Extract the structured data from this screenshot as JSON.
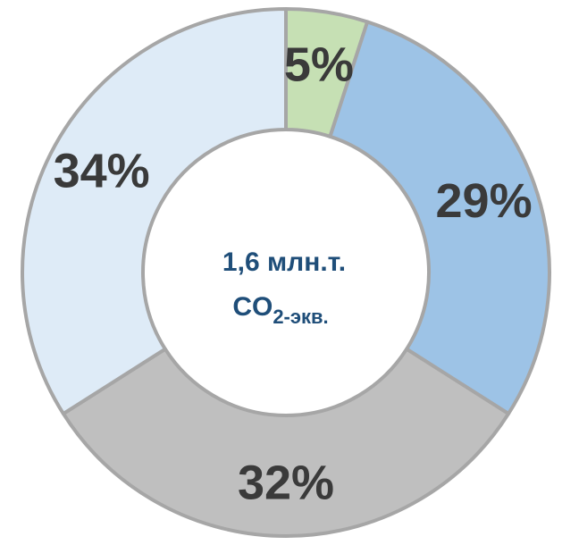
{
  "chart_data": {
    "type": "pie",
    "donut": true,
    "slices": [
      {
        "label": "5%",
        "value": 5,
        "color": "#c6e0b4"
      },
      {
        "label": "29%",
        "value": 29,
        "color": "#9dc3e6"
      },
      {
        "label": "32%",
        "value": 32,
        "color": "#bfbfbf"
      },
      {
        "label": "34%",
        "value": 34,
        "color": "#deebf7"
      }
    ],
    "start_angle_deg": 0,
    "direction": "clockwise",
    "center_text": {
      "line1": "1,6 млн.т.",
      "line2_main": "CO",
      "line2_sub": "2-экв."
    },
    "colors": {
      "border": "#a6a6a6",
      "label": "#3a3a3a",
      "center_text": "#1f4e79"
    },
    "legend": "none"
  }
}
